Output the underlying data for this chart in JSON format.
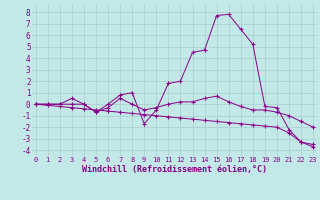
{
  "xlabel": "Windchill (Refroidissement éolien,°C)",
  "background_color": "#c2e8e8",
  "line_color": "#880088",
  "grid_color": "#aacccc",
  "x_ticks": [
    0,
    1,
    2,
    3,
    4,
    5,
    6,
    7,
    8,
    9,
    10,
    11,
    12,
    13,
    14,
    15,
    16,
    17,
    18,
    19,
    20,
    21,
    22,
    23
  ],
  "y_ticks": [
    -4,
    -3,
    -2,
    -1,
    0,
    1,
    2,
    3,
    4,
    5,
    6,
    7,
    8
  ],
  "xlim": [
    -0.3,
    23.3
  ],
  "ylim": [
    -4.5,
    8.7
  ],
  "series": [
    [
      0,
      1,
      2,
      3,
      4,
      5,
      6,
      7,
      8,
      9,
      10,
      11,
      12,
      13,
      14,
      15,
      16,
      17,
      18,
      19,
      20,
      21,
      22,
      23
    ],
    [
      0.0,
      0.0,
      0.0,
      0.5,
      0.0,
      -0.7,
      0.0,
      0.8,
      1.0,
      -1.7,
      -0.5,
      1.8,
      2.0,
      4.5,
      4.7,
      7.7,
      7.8,
      6.5,
      5.2,
      -0.2,
      -0.3,
      -2.2,
      -3.3,
      -3.5
    ],
    [
      0.0,
      0.0,
      0.0,
      0.0,
      0.0,
      -0.7,
      -0.3,
      0.5,
      0.0,
      -0.5,
      -0.3,
      0.0,
      0.2,
      0.2,
      0.5,
      0.7,
      0.2,
      -0.2,
      -0.5,
      -0.5,
      -0.7,
      -1.0,
      -1.5,
      -2.0
    ],
    [
      0.0,
      -0.1,
      -0.2,
      -0.3,
      -0.4,
      -0.5,
      -0.6,
      -0.7,
      -0.8,
      -0.9,
      -1.0,
      -1.1,
      -1.2,
      -1.3,
      -1.4,
      -1.5,
      -1.6,
      -1.7,
      -1.8,
      -1.9,
      -2.0,
      -2.5,
      -3.3,
      -3.7
    ]
  ]
}
